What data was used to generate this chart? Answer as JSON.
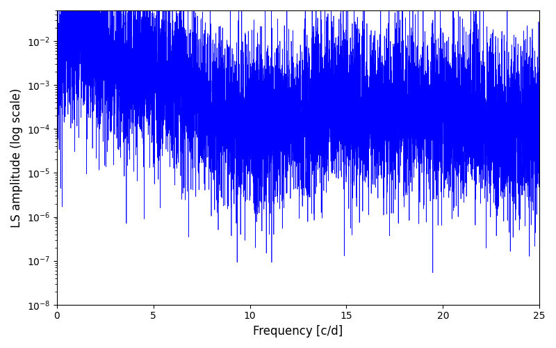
{
  "freq_min": 0,
  "freq_max": 25,
  "ylim_min": 1e-08,
  "ylim_max": 0.05,
  "xlabel": "Frequency [c/d]",
  "ylabel": "LS amplitude (log scale)",
  "line_color": "#0000ff",
  "line_width": 0.5,
  "background_color": "#ffffff",
  "figsize": [
    8.0,
    5.0
  ],
  "dpi": 100,
  "xticks": [
    0,
    5,
    10,
    15,
    20,
    25
  ],
  "n_points": 8000,
  "seed": 17
}
